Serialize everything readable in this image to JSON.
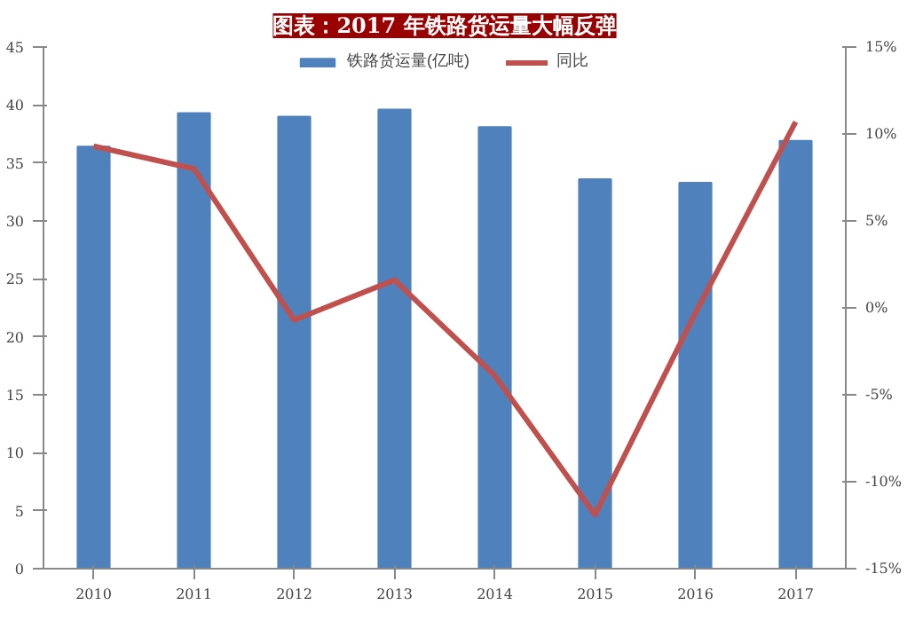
{
  "chart_data": {
    "type": "bar",
    "title": "图表：2017 年铁路货运量大幅反弹",
    "categories": [
      "2010",
      "2011",
      "2012",
      "2013",
      "2014",
      "2015",
      "2016",
      "2017"
    ],
    "series": [
      {
        "name": "铁路货运量(亿吨)",
        "color": "#4f81bd",
        "values": [
          36.4,
          39.3,
          39.0,
          39.6,
          38.1,
          33.6,
          33.3,
          36.9
        ]
      },
      {
        "name": "同比",
        "type": "line",
        "axis": "y2",
        "color": "#c0504d",
        "values": [
          9.3,
          8.0,
          -0.7,
          1.6,
          -3.9,
          -11.9,
          -0.3,
          10.7
        ]
      }
    ],
    "ylim": [
      0,
      45
    ],
    "yticks": [
      0,
      5,
      10,
      15,
      20,
      25,
      30,
      35,
      40,
      45
    ],
    "y2lim": [
      -15,
      15
    ],
    "y2ticks": [
      {
        "value": -15,
        "label": "-15%"
      },
      {
        "value": -10,
        "label": "-10%"
      },
      {
        "value": -5,
        "label": "-5%"
      },
      {
        "value": 0,
        "label": "0%"
      },
      {
        "value": 5,
        "label": "5%"
      },
      {
        "value": 10,
        "label": "10%"
      },
      {
        "value": 15,
        "label": "15%"
      }
    ],
    "legend": "top",
    "grid": false
  }
}
